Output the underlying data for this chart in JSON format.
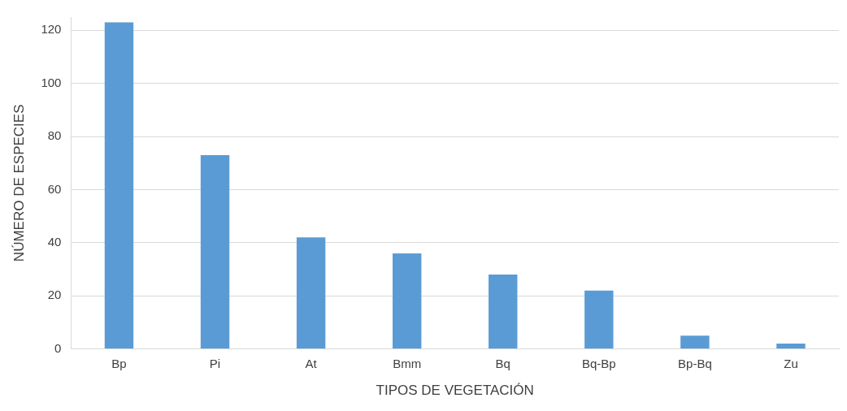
{
  "chart_data": {
    "type": "bar",
    "xlabel": "TIPOS DE VEGETACIÓN",
    "ylabel": "NÚMERO DE ESPECIES",
    "categories": [
      "Bp",
      "Pi",
      "At",
      "Bmm",
      "Bq",
      "Bq-Bp",
      "Bp-Bq",
      "Zu"
    ],
    "values": [
      123,
      73,
      42,
      36,
      28,
      22,
      5,
      2
    ],
    "color": "#5b9bd5",
    "ylim": [
      0,
      125
    ],
    "yticks": [
      0,
      20,
      40,
      60,
      80,
      100,
      120
    ],
    "grid": "y",
    "legend": false
  }
}
